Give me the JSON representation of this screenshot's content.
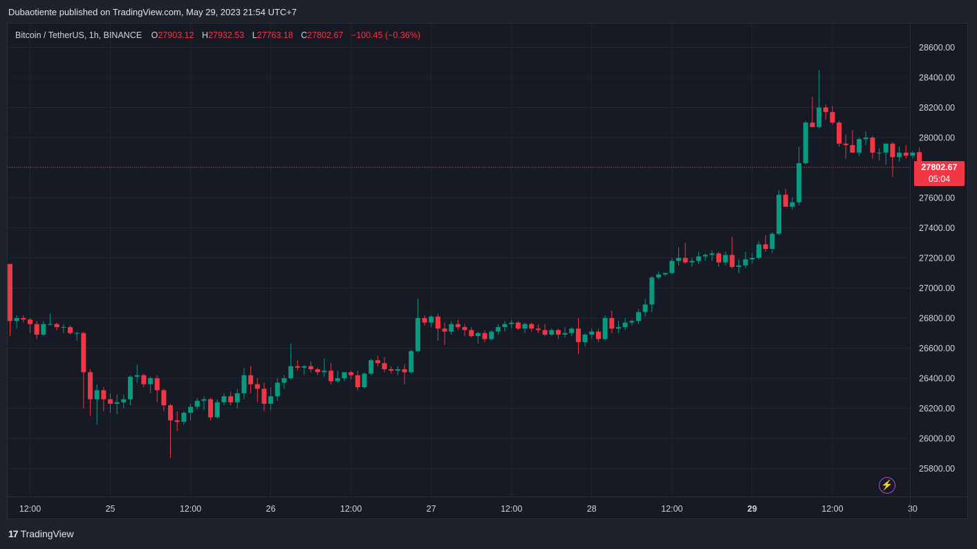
{
  "header": {
    "published": "Dubaotiente published on TradingView.com, May 29, 2023 21:54 UTC+7"
  },
  "legend": {
    "symbol": "Bitcoin / TetherUS, 1h, BINANCE",
    "o_label": "O",
    "o_value": "27903.12",
    "h_label": "H",
    "h_value": "27932.53",
    "l_label": "L",
    "l_value": "27763.18",
    "c_label": "C",
    "c_value": "27802.67",
    "change": "−100.45 (−0.36%)"
  },
  "price_tag": {
    "price": "27802.67",
    "countdown": "05:04"
  },
  "brand": {
    "logo": "17",
    "name": "TradingView"
  },
  "icons": {
    "bolt": "lightning-icon"
  },
  "colors": {
    "up": "#089981",
    "down": "#f23645",
    "bg": "#161a25",
    "grid": "#232733"
  },
  "chart_data": {
    "type": "candlestick",
    "symbol": "Bitcoin / TetherUS",
    "interval": "1h",
    "exchange": "BINANCE",
    "y_ticks": [
      25800,
      26000,
      26200,
      26400,
      26600,
      26800,
      27000,
      27200,
      27400,
      27600,
      27800,
      28000,
      28200,
      28400,
      28600
    ],
    "y_tick_labels": [
      "25800.00",
      "26000.00",
      "26200.00",
      "26400.00",
      "26600.00",
      "26800.00",
      "27000.00",
      "27200.00",
      "27400.00",
      "27600.00",
      "27800.00",
      "28000.00",
      "28200.00",
      "28400.00",
      "28600.00"
    ],
    "x_ticks": [
      {
        "i": 3,
        "label": "12:00",
        "bold": false
      },
      {
        "i": 15,
        "label": "25",
        "bold": false
      },
      {
        "i": 27,
        "label": "12:00",
        "bold": false
      },
      {
        "i": 39,
        "label": "26",
        "bold": false
      },
      {
        "i": 51,
        "label": "12:00",
        "bold": false
      },
      {
        "i": 63,
        "label": "27",
        "bold": false
      },
      {
        "i": 75,
        "label": "12:00",
        "bold": false
      },
      {
        "i": 87,
        "label": "28",
        "bold": false
      },
      {
        "i": 99,
        "label": "12:00",
        "bold": false
      },
      {
        "i": 111,
        "label": "29",
        "bold": true
      },
      {
        "i": 123,
        "label": "12:00",
        "bold": false
      },
      {
        "i": 135,
        "label": "30",
        "bold": false
      }
    ],
    "last_price": 27802.67,
    "ylim": [
      25650,
      28750
    ],
    "ohlc": [
      [
        27160,
        27160,
        26680,
        26780
      ],
      [
        26780,
        26820,
        26730,
        26800
      ],
      [
        26800,
        26820,
        26770,
        26790
      ],
      [
        26790,
        26800,
        26700,
        26760
      ],
      [
        26760,
        26780,
        26660,
        26690
      ],
      [
        26690,
        26780,
        26680,
        26760
      ],
      [
        26760,
        26830,
        26750,
        26760
      ],
      [
        26760,
        26770,
        26720,
        26740
      ],
      [
        26740,
        26760,
        26700,
        26740
      ],
      [
        26740,
        26750,
        26690,
        26700
      ],
      [
        26700,
        26710,
        26650,
        26700
      ],
      [
        26700,
        26710,
        26200,
        26440
      ],
      [
        26440,
        26460,
        26150,
        26260
      ],
      [
        26260,
        26360,
        26090,
        26320
      ],
      [
        26320,
        26340,
        26180,
        26260
      ],
      [
        26260,
        26300,
        26170,
        26230
      ],
      [
        26230,
        26290,
        26160,
        26240
      ],
      [
        26240,
        26290,
        26200,
        26260
      ],
      [
        26260,
        26420,
        26220,
        26410
      ],
      [
        26410,
        26490,
        26370,
        26420
      ],
      [
        26420,
        26430,
        26340,
        26360
      ],
      [
        26360,
        26410,
        26300,
        26400
      ],
      [
        26400,
        26420,
        26240,
        26320
      ],
      [
        26320,
        26330,
        26180,
        26220
      ],
      [
        26220,
        26230,
        25870,
        26120
      ],
      [
        26120,
        26180,
        26050,
        26110
      ],
      [
        26110,
        26180,
        26090,
        26170
      ],
      [
        26170,
        26230,
        26120,
        26210
      ],
      [
        26210,
        26270,
        26190,
        26250
      ],
      [
        26250,
        26280,
        26190,
        26260
      ],
      [
        26260,
        26270,
        26120,
        26140
      ],
      [
        26140,
        26260,
        26130,
        26240
      ],
      [
        26240,
        26300,
        26220,
        26280
      ],
      [
        26280,
        26310,
        26220,
        26240
      ],
      [
        26240,
        26330,
        26200,
        26300
      ],
      [
        26300,
        26470,
        26260,
        26420
      ],
      [
        26420,
        26480,
        26300,
        26360
      ],
      [
        26360,
        26400,
        26240,
        26330
      ],
      [
        26330,
        26370,
        26180,
        26230
      ],
      [
        26230,
        26340,
        26190,
        26280
      ],
      [
        26280,
        26400,
        26250,
        26370
      ],
      [
        26370,
        26420,
        26330,
        26400
      ],
      [
        26400,
        26630,
        26390,
        26480
      ],
      [
        26480,
        26520,
        26450,
        26470
      ],
      [
        26470,
        26490,
        26420,
        26480
      ],
      [
        26480,
        26510,
        26440,
        26460
      ],
      [
        26460,
        26470,
        26420,
        26440
      ],
      [
        26440,
        26530,
        26410,
        26450
      ],
      [
        26450,
        26500,
        26360,
        26380
      ],
      [
        26380,
        26450,
        26370,
        26400
      ],
      [
        26400,
        26440,
        26380,
        26440
      ],
      [
        26440,
        26450,
        26390,
        26420
      ],
      [
        26420,
        26450,
        26320,
        26340
      ],
      [
        26340,
        26440,
        26330,
        26430
      ],
      [
        26430,
        26530,
        26420,
        26520
      ],
      [
        26520,
        26550,
        26480,
        26500
      ],
      [
        26500,
        26540,
        26440,
        26460
      ],
      [
        26460,
        26480,
        26430,
        26450
      ],
      [
        26450,
        26480,
        26420,
        26460
      ],
      [
        26460,
        26490,
        26360,
        26440
      ],
      [
        26440,
        26590,
        26430,
        26580
      ],
      [
        26580,
        26930,
        26570,
        26800
      ],
      [
        26800,
        26820,
        26750,
        26770
      ],
      [
        26770,
        26820,
        26740,
        26810
      ],
      [
        26810,
        26830,
        26650,
        26730
      ],
      [
        26730,
        26770,
        26620,
        26710
      ],
      [
        26710,
        26780,
        26690,
        26760
      ],
      [
        26760,
        26790,
        26720,
        26740
      ],
      [
        26740,
        26760,
        26680,
        26720
      ],
      [
        26720,
        26740,
        26670,
        26680
      ],
      [
        26680,
        26710,
        26630,
        26700
      ],
      [
        26700,
        26720,
        26640,
        26660
      ],
      [
        26660,
        26720,
        26650,
        26710
      ],
      [
        26710,
        26760,
        26690,
        26740
      ],
      [
        26740,
        26780,
        26710,
        26760
      ],
      [
        26760,
        26790,
        26730,
        26770
      ],
      [
        26770,
        26780,
        26720,
        26730
      ],
      [
        26730,
        26770,
        26700,
        26760
      ],
      [
        26760,
        26770,
        26710,
        26730
      ],
      [
        26730,
        26760,
        26700,
        26720
      ],
      [
        26720,
        26760,
        26680,
        26690
      ],
      [
        26690,
        26730,
        26680,
        26720
      ],
      [
        26720,
        26730,
        26660,
        26690
      ],
      [
        26690,
        26740,
        26670,
        26700
      ],
      [
        26700,
        26740,
        26680,
        26730
      ],
      [
        26730,
        26800,
        26560,
        26640
      ],
      [
        26640,
        26700,
        26610,
        26690
      ],
      [
        26690,
        26730,
        26660,
        26710
      ],
      [
        26710,
        26730,
        26640,
        26660
      ],
      [
        26660,
        26820,
        26650,
        26800
      ],
      [
        26800,
        26850,
        26700,
        26730
      ],
      [
        26730,
        26780,
        26700,
        26740
      ],
      [
        26740,
        26800,
        26720,
        26770
      ],
      [
        26770,
        26790,
        26750,
        26780
      ],
      [
        26780,
        26860,
        26760,
        26840
      ],
      [
        26840,
        26930,
        26810,
        26890
      ],
      [
        26890,
        27080,
        26840,
        27070
      ],
      [
        27070,
        27110,
        27060,
        27090
      ],
      [
        27090,
        27100,
        27080,
        27100
      ],
      [
        27100,
        27200,
        27090,
        27180
      ],
      [
        27180,
        27270,
        27150,
        27200
      ],
      [
        27200,
        27300,
        27160,
        27170
      ],
      [
        27170,
        27200,
        27140,
        27180
      ],
      [
        27180,
        27240,
        27160,
        27210
      ],
      [
        27210,
        27230,
        27180,
        27220
      ],
      [
        27220,
        27250,
        27180,
        27230
      ],
      [
        27230,
        27240,
        27140,
        27170
      ],
      [
        27170,
        27240,
        27150,
        27220
      ],
      [
        27220,
        27340,
        27130,
        27140
      ],
      [
        27140,
        27190,
        27100,
        27150
      ],
      [
        27150,
        27240,
        27130,
        27190
      ],
      [
        27190,
        27230,
        27160,
        27200
      ],
      [
        27200,
        27310,
        27190,
        27290
      ],
      [
        27290,
        27350,
        27240,
        27260
      ],
      [
        27260,
        27370,
        27230,
        27360
      ],
      [
        27360,
        27650,
        27350,
        27620
      ],
      [
        27620,
        27660,
        27540,
        27540
      ],
      [
        27540,
        27600,
        27520,
        27570
      ],
      [
        27570,
        27940,
        27550,
        27830
      ],
      [
        27830,
        28110,
        27820,
        28100
      ],
      [
        28100,
        28270,
        28070,
        28070
      ],
      [
        28070,
        28450,
        28060,
        28200
      ],
      [
        28200,
        28220,
        28120,
        28170
      ],
      [
        28170,
        28210,
        28090,
        28100
      ],
      [
        28100,
        28110,
        27940,
        27960
      ],
      [
        27960,
        28020,
        27860,
        27950
      ],
      [
        27950,
        28050,
        27900,
        27900
      ],
      [
        27900,
        28000,
        27880,
        27990
      ],
      [
        27990,
        28040,
        27950,
        28000
      ],
      [
        28000,
        28010,
        27860,
        27900
      ],
      [
        27900,
        27930,
        27850,
        27900
      ],
      [
        27900,
        27960,
        27820,
        27960
      ],
      [
        27960,
        27970,
        27740,
        27870
      ],
      [
        27870,
        27940,
        27840,
        27900
      ],
      [
        27900,
        27950,
        27860,
        27880
      ],
      [
        27880,
        27910,
        27860,
        27900
      ],
      [
        27903.12,
        27932.53,
        27763.18,
        27802.67
      ]
    ]
  }
}
